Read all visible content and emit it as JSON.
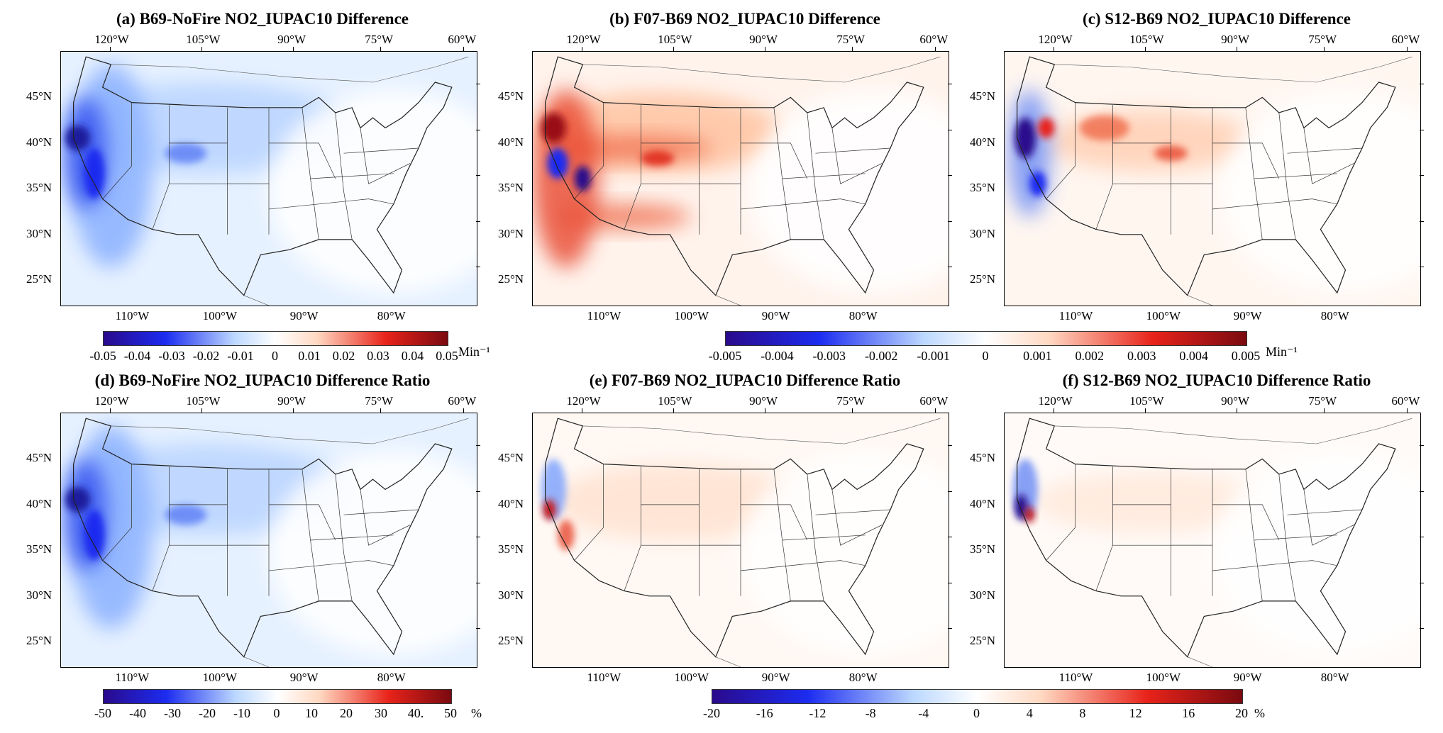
{
  "panels": [
    {
      "id": "a",
      "title": "(a) B69-NoFire NO2_IUPAC10 Difference",
      "theme": "blue"
    },
    {
      "id": "b",
      "title": "(b) F07-B69 NO2_IUPAC10 Difference",
      "theme": "red"
    },
    {
      "id": "c",
      "title": "(c) S12-B69 NO2_IUPAC10 Difference",
      "theme": "mixed"
    },
    {
      "id": "d",
      "title": "(d) B69-NoFire NO2_IUPAC10 Difference Ratio",
      "theme": "blue"
    },
    {
      "id": "e",
      "title": "(e) F07-B69 NO2_IUPAC10 Difference Ratio",
      "theme": "faint"
    },
    {
      "id": "f",
      "title": "(f) S12-B69 NO2_IUPAC10 Difference Ratio",
      "theme": "faint2"
    }
  ],
  "axes": {
    "top_lon_labels": [
      "120°W",
      "105°W",
      "90°W",
      "75°W",
      "60°W"
    ],
    "bottom_lon_labels": [
      "110°W",
      "100°W",
      "90°W",
      "80°W"
    ],
    "lat_labels": [
      "45°N",
      "40°N",
      "35°N",
      "30°N",
      "25°N"
    ]
  },
  "colorbars": [
    {
      "id": "cb1",
      "labels": [
        "-0.05",
        "-0.04",
        "-0.03",
        "-0.02",
        "-0.01",
        "0",
        "0.01",
        "0.02",
        "0.03",
        "0.04",
        "0.05"
      ],
      "unit": "Min⁻¹"
    },
    {
      "id": "cb2",
      "labels": [
        "-0.005",
        "-0.004",
        "-0.003",
        "-0.002",
        "-0.001",
        "0",
        "0.001",
        "0.002",
        "0.003",
        "0.004",
        "0.005"
      ],
      "unit": "Min⁻¹"
    },
    {
      "id": "cb3",
      "labels": [
        "-50",
        "-40",
        "-30",
        "-20",
        "-10",
        "0",
        "10",
        "20",
        "30",
        "40.",
        "50"
      ],
      "unit": "%"
    },
    {
      "id": "cb4",
      "labels": [
        "-20",
        "-16",
        "-12",
        "-8",
        "-4",
        "0",
        "4",
        "8",
        "12",
        "16",
        "20"
      ],
      "unit": "%"
    }
  ],
  "colors": {
    "neg_dark": "#2a0a8c",
    "neg": "#1c2cf0",
    "neg_light": "#bcd8ff",
    "white": "#ffffff",
    "pos_light": "#ffd9c2",
    "pos": "#e8231a",
    "pos_dark": "#7a0a10"
  }
}
